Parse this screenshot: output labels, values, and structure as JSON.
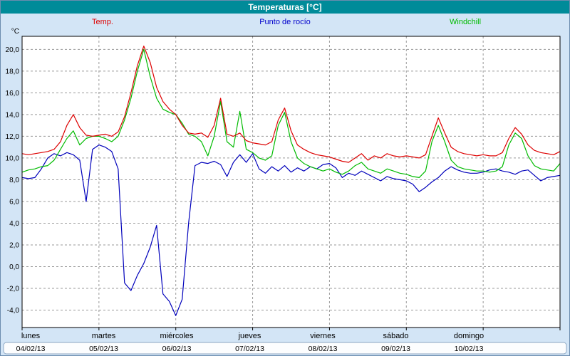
{
  "title": "Temperaturas [°C]",
  "colors": {
    "title_bg": "#008b99",
    "title_text": "#ffffff",
    "background": "#d3e5f6",
    "plot_bg": "#ffffff",
    "grid": "#9a9a9a",
    "temp_line": "#dd0000",
    "dew_line": "#0000bb",
    "windchill_line": "#00bb00"
  },
  "legend": [
    {
      "label": "Temp.",
      "color": "#dd0000"
    },
    {
      "label": "Punto de rocío",
      "color": "#0000cc"
    },
    {
      "label": "Windchill",
      "color": "#00bb00"
    }
  ],
  "chart_data": {
    "type": "line",
    "title": "Temperaturas [°C]",
    "ylabel": "°C",
    "xlabel": "",
    "grid": "dashed",
    "legend_position": "top",
    "ylim": [
      -5.6,
      21.2
    ],
    "y_ticks": [
      20,
      18,
      16,
      14,
      12,
      10,
      8,
      6,
      4,
      2,
      0,
      -2,
      -4
    ],
    "y_tick_labels": [
      "20,0",
      "18,0",
      "16,0",
      "14,0",
      "12,0",
      "10,0",
      "8,0",
      "6,0",
      "4,0",
      "2,0",
      "0,0",
      "-2,0",
      "-4,0"
    ],
    "x_unit": "hours from Monday 00:00",
    "x_range": [
      0,
      168
    ],
    "x_step_hours": 2,
    "days": [
      {
        "name": "lunes",
        "date": "04/02/13"
      },
      {
        "name": "martes",
        "date": "05/02/13"
      },
      {
        "name": "miércoles",
        "date": "06/02/13"
      },
      {
        "name": "jueves",
        "date": "07/02/13"
      },
      {
        "name": "viernes",
        "date": "08/02/13"
      },
      {
        "name": "sábado",
        "date": "09/02/13"
      },
      {
        "name": "domingo",
        "date": "10/02/13"
      }
    ],
    "series": [
      {
        "id": "dew-point",
        "name": "Punto de rocío",
        "color": "#0000bb",
        "values": [
          8.2,
          8.1,
          8.2,
          9.0,
          10.0,
          10.4,
          10.2,
          10.5,
          10.3,
          9.8,
          6.0,
          10.8,
          11.2,
          11.0,
          10.6,
          9.0,
          -1.5,
          -2.2,
          -0.8,
          0.3,
          1.8,
          3.8,
          -2.5,
          -3.2,
          -4.5,
          -3.0,
          4.0,
          9.3,
          9.6,
          9.5,
          9.7,
          9.4,
          8.3,
          9.6,
          10.3,
          9.6,
          10.4,
          9.0,
          8.6,
          9.2,
          8.8,
          9.3,
          8.7,
          9.1,
          8.8,
          9.2,
          9.0,
          9.4,
          9.5,
          9.1,
          8.2,
          8.6,
          8.4,
          8.8,
          8.5,
          8.2,
          7.9,
          8.3,
          8.1,
          8.0,
          7.9,
          7.6,
          6.9,
          7.3,
          7.8,
          8.2,
          8.8,
          9.2,
          8.9,
          8.7,
          8.6,
          8.6,
          8.7,
          8.9,
          9.0,
          8.8,
          8.7,
          8.5,
          8.8,
          8.9,
          8.4,
          7.9,
          8.2,
          8.3,
          8.4
        ]
      },
      {
        "id": "windchill",
        "name": "Windchill",
        "color": "#00bb00",
        "values": [
          8.7,
          8.9,
          9.0,
          9.2,
          9.3,
          9.8,
          10.8,
          11.8,
          12.5,
          11.2,
          11.8,
          12.0,
          12.0,
          11.8,
          11.5,
          12.0,
          13.5,
          15.5,
          18.0,
          20.0,
          17.5,
          15.5,
          14.5,
          14.2,
          14.0,
          13.2,
          12.2,
          12.0,
          11.5,
          10.2,
          12.0,
          15.2,
          11.5,
          11.0,
          14.3,
          10.8,
          10.5,
          10.0,
          9.8,
          10.2,
          13.0,
          14.2,
          11.5,
          10.0,
          9.5,
          9.2,
          9.0,
          8.8,
          9.0,
          8.7,
          8.5,
          8.8,
          9.3,
          9.6,
          9.0,
          8.8,
          8.6,
          9.0,
          8.8,
          8.6,
          8.5,
          8.3,
          8.2,
          8.8,
          11.5,
          13.0,
          11.5,
          9.8,
          9.2,
          9.0,
          8.9,
          8.8,
          8.8,
          8.7,
          8.8,
          9.2,
          11.2,
          12.3,
          11.8,
          10.2,
          9.3,
          9.0,
          8.9,
          8.8,
          9.5
        ]
      },
      {
        "id": "temp",
        "name": "Temp.",
        "color": "#dd0000",
        "values": [
          10.4,
          10.3,
          10.4,
          10.5,
          10.6,
          10.8,
          11.5,
          13.0,
          14.0,
          12.8,
          12.1,
          12.0,
          12.1,
          12.2,
          12.0,
          12.4,
          13.8,
          16.0,
          18.5,
          20.3,
          18.8,
          16.5,
          15.2,
          14.5,
          14.0,
          13.0,
          12.3,
          12.2,
          12.3,
          11.9,
          13.0,
          15.5,
          12.2,
          12.0,
          12.3,
          11.6,
          11.4,
          11.3,
          11.2,
          11.5,
          13.5,
          14.6,
          12.5,
          11.2,
          10.8,
          10.5,
          10.3,
          10.2,
          10.1,
          9.9,
          9.7,
          9.6,
          10.0,
          10.4,
          9.8,
          10.2,
          10.0,
          10.4,
          10.2,
          10.1,
          10.2,
          10.1,
          10.0,
          10.3,
          12.0,
          13.7,
          12.3,
          11.0,
          10.6,
          10.4,
          10.3,
          10.2,
          10.3,
          10.2,
          10.2,
          10.5,
          11.8,
          12.8,
          12.2,
          11.2,
          10.7,
          10.5,
          10.4,
          10.3,
          10.6
        ]
      }
    ]
  }
}
